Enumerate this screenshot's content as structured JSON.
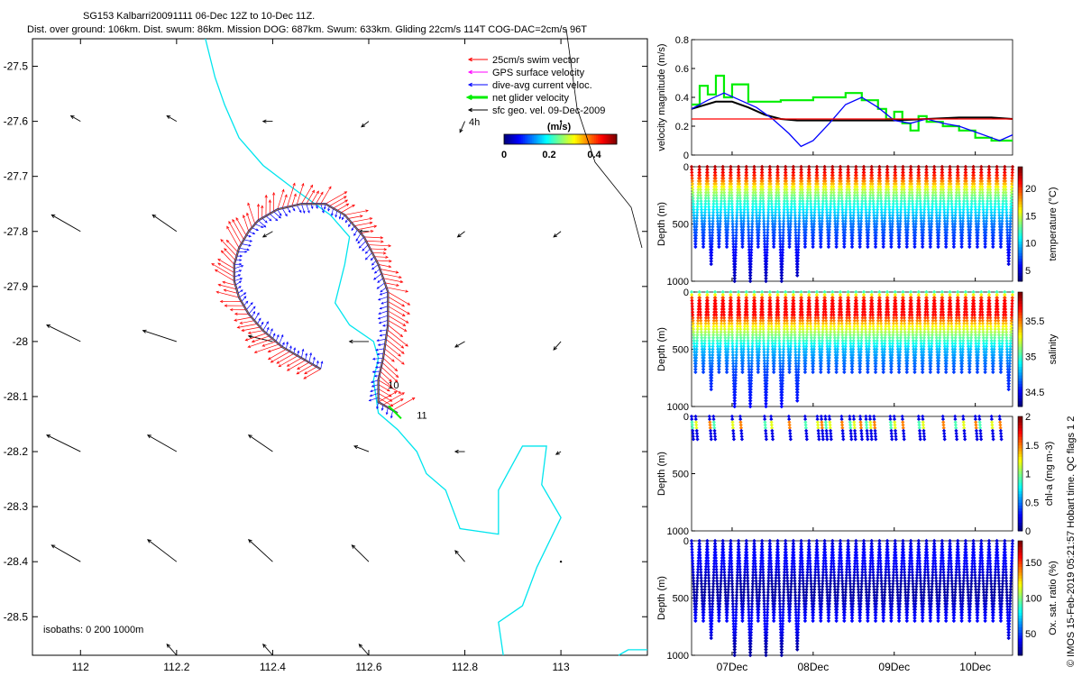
{
  "header": {
    "title": "SG153 Kalbarri20091111 06-Dec 12Z to 10-Dec 11Z.",
    "stats": "Dist. over ground: 106km. Dist. swum: 86km. Mission DOG: 687km. Swum: 633km. Gliding 22cm/s 114T COG-DAC=2cm/s 96T"
  },
  "watermark": "© IMOS 15-Feb-2019 05:21:57 Hobart time. QC flags 1  2",
  "colors": {
    "swim": "#ff0000",
    "gps": "#ff00ff",
    "dac": "#0000ff",
    "net": "#00ee00",
    "geo": "#000000",
    "isobath": "#00e5ee"
  },
  "chart_data": [
    {
      "type": "scatter",
      "name": "track-map",
      "xlim": [
        111.9,
        113.18
      ],
      "ylim": [
        -28.57,
        -27.45
      ],
      "xticks": [
        112,
        112.2,
        112.4,
        112.6,
        112.8,
        113
      ],
      "xtick_labels": [
        "112",
        "112.2",
        "112.4",
        "112.6",
        "112.8",
        "113"
      ],
      "yticks": [
        -27.5,
        -27.6,
        -27.7,
        -27.8,
        -27.9,
        -28.0,
        -28.1,
        -28.2,
        -28.3,
        -28.4,
        -28.5
      ],
      "ytick_labels": [
        "-27.5",
        "-27.6",
        "-27.7",
        "-27.8",
        "-27.9",
        "-28",
        "-28.1",
        "-28.2",
        "-28.3",
        "-28.4",
        "-28.5"
      ],
      "legend": {
        "placement": "top-right",
        "items": [
          {
            "label": "25cm/s swim vector",
            "color": "#ff0000"
          },
          {
            "label": "GPS surface velocity",
            "color": "#ff00ff"
          },
          {
            "label": "dive-avg current veloc.",
            "color": "#0000ff"
          },
          {
            "label": "net glider velocity",
            "color": "#00ee00"
          },
          {
            "label": "sfc geo. vel. 09-Dec-2009",
            "color": "#000000"
          }
        ]
      },
      "scale_label": "4h",
      "colorbar": {
        "label": "(m/s)",
        "ticks": [
          "0",
          "0.2",
          "0.4"
        ],
        "range": [
          0,
          0.5
        ]
      },
      "isobath_label": "isobaths: 0   200  1000m",
      "day_labels": [
        {
          "text": "10",
          "lon": 112.64,
          "lat": -28.085
        },
        {
          "text": "11",
          "lon": 112.7,
          "lat": -28.14
        }
      ],
      "track": [
        [
          112.5,
          -28.05
        ],
        [
          112.46,
          -28.03
        ],
        [
          112.42,
          -28.01
        ],
        [
          112.38,
          -27.98
        ],
        [
          112.35,
          -27.95
        ],
        [
          112.33,
          -27.92
        ],
        [
          112.32,
          -27.89
        ],
        [
          112.32,
          -27.86
        ],
        [
          112.33,
          -27.83
        ],
        [
          112.35,
          -27.8
        ],
        [
          112.37,
          -27.78
        ],
        [
          112.41,
          -27.76
        ],
        [
          112.46,
          -27.75
        ],
        [
          112.51,
          -27.75
        ],
        [
          112.55,
          -27.77
        ],
        [
          112.59,
          -27.81
        ],
        [
          112.62,
          -27.86
        ],
        [
          112.64,
          -27.91
        ],
        [
          112.64,
          -27.97
        ],
        [
          112.63,
          -28.03
        ],
        [
          112.62,
          -28.07
        ],
        [
          112.62,
          -28.11
        ],
        [
          112.64,
          -28.12
        ],
        [
          112.66,
          -28.13
        ]
      ],
      "isobath_0": [
        [
          112.26,
          -27.45
        ],
        [
          112.28,
          -27.52
        ],
        [
          112.3,
          -27.57
        ],
        [
          112.33,
          -27.63
        ],
        [
          112.38,
          -27.68
        ],
        [
          112.44,
          -27.72
        ],
        [
          112.52,
          -27.77
        ],
        [
          112.56,
          -27.81
        ],
        [
          112.55,
          -27.86
        ],
        [
          112.53,
          -27.93
        ],
        [
          112.56,
          -27.97
        ],
        [
          112.61,
          -28.0
        ],
        [
          112.62,
          -28.03
        ],
        [
          112.61,
          -28.07
        ],
        [
          112.62,
          -28.13
        ],
        [
          112.66,
          -28.16
        ],
        [
          112.7,
          -28.2
        ],
        [
          112.72,
          -28.24
        ],
        [
          112.76,
          -28.27
        ],
        [
          112.79,
          -28.34
        ],
        [
          112.87,
          -28.35
        ],
        [
          112.87,
          -28.27
        ],
        [
          112.92,
          -28.19
        ],
        [
          112.97,
          -28.19
        ],
        [
          112.96,
          -28.26
        ],
        [
          113.0,
          -28.32
        ],
        [
          112.95,
          -28.41
        ],
        [
          112.92,
          -28.48
        ],
        [
          112.87,
          -28.51
        ],
        [
          112.88,
          -28.57
        ]
      ],
      "isobath_1": [
        [
          113.18,
          -28.56
        ],
        [
          113.14,
          -28.56
        ],
        [
          113.12,
          -28.57
        ]
      ],
      "geo_vectors": [
        [
          112.0,
          -27.6,
          -0.02,
          0.01
        ],
        [
          112.2,
          -27.6,
          -0.02,
          0.01
        ],
        [
          112.4,
          -27.6,
          -0.02,
          0.0
        ],
        [
          112.6,
          -27.6,
          -0.015,
          -0.01
        ],
        [
          112.8,
          -27.6,
          -0.01,
          -0.02
        ],
        [
          113.0,
          -27.6,
          0.0,
          0.0
        ],
        [
          112.0,
          -27.8,
          -0.06,
          0.03
        ],
        [
          112.2,
          -27.8,
          -0.05,
          0.03
        ],
        [
          112.4,
          -27.8,
          -0.02,
          -0.01
        ],
        [
          112.6,
          -27.8,
          -0.02,
          0.0
        ],
        [
          112.8,
          -27.8,
          -0.015,
          -0.01
        ],
        [
          113.0,
          -27.8,
          -0.015,
          -0.01
        ],
        [
          112.0,
          -28.0,
          -0.07,
          0.03
        ],
        [
          112.2,
          -28.0,
          -0.07,
          0.02
        ],
        [
          112.4,
          -28.0,
          -0.05,
          0.01
        ],
        [
          112.6,
          -28.0,
          -0.04,
          0.0
        ],
        [
          112.8,
          -28.0,
          -0.02,
          -0.01
        ],
        [
          113.0,
          -28.0,
          -0.015,
          -0.015
        ],
        [
          112.0,
          -28.2,
          -0.07,
          0.03
        ],
        [
          112.2,
          -28.2,
          -0.06,
          0.03
        ],
        [
          112.4,
          -28.2,
          -0.05,
          0.03
        ],
        [
          112.6,
          -28.2,
          -0.03,
          0.01
        ],
        [
          112.8,
          -28.2,
          -0.02,
          0.0
        ],
        [
          113.0,
          -28.2,
          -0.01,
          -0.005
        ],
        [
          112.0,
          -28.4,
          -0.06,
          0.03
        ],
        [
          112.2,
          -28.4,
          -0.06,
          0.04
        ],
        [
          112.4,
          -28.4,
          -0.05,
          0.04
        ],
        [
          112.6,
          -28.4,
          -0.035,
          0.03
        ],
        [
          112.8,
          -28.4,
          -0.02,
          0.02
        ],
        [
          113.0,
          -28.4,
          0.0,
          0.0
        ],
        [
          112.2,
          -28.57,
          -0.02,
          0.02
        ],
        [
          112.4,
          -28.57,
          -0.02,
          0.02
        ],
        [
          112.6,
          -28.57,
          -0.02,
          0.02
        ]
      ]
    },
    {
      "type": "line",
      "name": "velocity-magnitude",
      "ylabel": "velocity magnitude (m/s)",
      "ylim": [
        0,
        0.8
      ],
      "yticks": [
        0,
        0.2,
        0.4,
        0.6,
        0.8
      ],
      "ytick_labels": [
        "0",
        "0.2",
        "0.4",
        "0.6",
        "0.8"
      ],
      "xlim": [
        6.5,
        10.46
      ],
      "series": [
        {
          "color": "#00ee00",
          "x": [
            6.5,
            6.6,
            6.6,
            6.7,
            6.7,
            6.8,
            6.8,
            6.9,
            6.9,
            7.0,
            7.0,
            7.2,
            7.2,
            7.6,
            7.6,
            8.0,
            8.0,
            8.4,
            8.4,
            8.6,
            8.6,
            8.8,
            8.8,
            8.9,
            8.9,
            9.0,
            9.0,
            9.1,
            9.1,
            9.2,
            9.2,
            9.3,
            9.3,
            9.4,
            9.4,
            9.6,
            9.6,
            9.8,
            9.8,
            10.0,
            10.0,
            10.2,
            10.2,
            10.46
          ],
          "y": [
            0.35,
            0.35,
            0.48,
            0.48,
            0.42,
            0.42,
            0.55,
            0.55,
            0.4,
            0.4,
            0.49,
            0.49,
            0.37,
            0.37,
            0.38,
            0.38,
            0.4,
            0.4,
            0.43,
            0.43,
            0.38,
            0.38,
            0.32,
            0.32,
            0.25,
            0.25,
            0.3,
            0.3,
            0.22,
            0.22,
            0.17,
            0.17,
            0.27,
            0.27,
            0.23,
            0.23,
            0.2,
            0.2,
            0.17,
            0.17,
            0.12,
            0.12,
            0.1,
            0.1
          ]
        },
        {
          "color": "#000000",
          "x": [
            6.5,
            6.8,
            7.0,
            7.2,
            7.4,
            7.6,
            7.8,
            8.0,
            8.4,
            8.8,
            9.0,
            9.4,
            9.8,
            10.2,
            10.46
          ],
          "y": [
            0.32,
            0.37,
            0.37,
            0.33,
            0.28,
            0.25,
            0.24,
            0.24,
            0.24,
            0.24,
            0.24,
            0.25,
            0.26,
            0.26,
            0.25
          ]
        },
        {
          "color": "#0000ff",
          "x": [
            6.5,
            6.7,
            6.9,
            7.1,
            7.3,
            7.5,
            7.7,
            7.85,
            8.0,
            8.2,
            8.4,
            8.6,
            8.8,
            9.0,
            9.2,
            9.4,
            9.6,
            9.8,
            10.0,
            10.2,
            10.3,
            10.46
          ],
          "y": [
            0.32,
            0.38,
            0.43,
            0.38,
            0.33,
            0.25,
            0.15,
            0.06,
            0.1,
            0.22,
            0.35,
            0.4,
            0.33,
            0.24,
            0.22,
            0.25,
            0.22,
            0.2,
            0.16,
            0.12,
            0.1,
            0.14
          ]
        },
        {
          "color": "#ff0000",
          "x": [
            6.5,
            10.46
          ],
          "y": [
            0.25,
            0.25
          ]
        }
      ]
    },
    {
      "type": "scatter",
      "name": "temperature-section",
      "ylabel": "Depth (m)",
      "ylim": [
        1000,
        0
      ],
      "yticks": [
        0,
        500,
        1000
      ],
      "ytick_labels": [
        "0",
        "500",
        "1000"
      ],
      "colorbar": {
        "label": "temperature (°C)",
        "ticks": [
          "5",
          "10",
          "15",
          "20"
        ],
        "range": [
          3,
          24
        ]
      },
      "profile_depths": [
        700,
        700,
        850,
        700,
        700,
        1000,
        700,
        1000,
        700,
        1000,
        700,
        1000,
        700,
        950,
        700,
        700,
        700,
        700,
        700,
        700,
        700,
        700,
        700,
        700,
        700,
        700,
        700,
        700,
        700,
        700,
        700,
        700,
        700,
        700,
        700,
        700,
        700,
        700,
        700,
        700,
        850
      ],
      "temp_profile": [
        [
          0,
          23
        ],
        [
          100,
          20
        ],
        [
          200,
          15
        ],
        [
          300,
          12
        ],
        [
          500,
          8
        ],
        [
          700,
          6
        ],
        [
          1000,
          4
        ]
      ]
    },
    {
      "type": "scatter",
      "name": "salinity-section",
      "ylabel": "Depth (m)",
      "ylim": [
        1000,
        0
      ],
      "yticks": [
        0,
        500,
        1000
      ],
      "ytick_labels": [
        "0",
        "500",
        "1000"
      ],
      "colorbar": {
        "label": "salinity",
        "ticks": [
          "34.5",
          "35",
          "35.5"
        ],
        "range": [
          34.3,
          35.9
        ]
      },
      "profile_depths": [
        700,
        700,
        850,
        700,
        700,
        1000,
        700,
        1000,
        700,
        1000,
        700,
        1000,
        700,
        950,
        700,
        700,
        700,
        700,
        700,
        700,
        700,
        700,
        700,
        700,
        700,
        700,
        700,
        700,
        700,
        700,
        700,
        700,
        700,
        700,
        700,
        700,
        700,
        700,
        700,
        700,
        850
      ],
      "sal_profile": [
        [
          0,
          35.0
        ],
        [
          60,
          35.7
        ],
        [
          200,
          35.7
        ],
        [
          300,
          35.3
        ],
        [
          500,
          34.8
        ],
        [
          700,
          34.6
        ],
        [
          1000,
          34.5
        ]
      ]
    },
    {
      "type": "scatter",
      "name": "chla-section",
      "ylabel": "Depth (m)",
      "ylim": [
        1000,
        0
      ],
      "yticks": [
        0,
        500,
        1000
      ],
      "ytick_labels": [
        "0",
        "500",
        "1000"
      ],
      "colorbar": {
        "label": "chl-a (mg m-3)",
        "ticks": [
          "0",
          "0.5",
          "1",
          "1.5",
          "2"
        ],
        "range": [
          0,
          2
        ]
      },
      "profiles": [
        6.5,
        6.55,
        6.72,
        6.77,
        7.0,
        7.1,
        7.4,
        7.48,
        7.7,
        7.9,
        8.05,
        8.1,
        8.15,
        8.2,
        8.35,
        8.45,
        8.5,
        8.58,
        8.65,
        8.7,
        8.75,
        8.95,
        9.0,
        9.1,
        9.3,
        9.35,
        9.6,
        9.75,
        9.85,
        10.0,
        10.05,
        10.2,
        10.3
      ]
    },
    {
      "type": "scatter",
      "name": "oxygen-section",
      "ylabel": "Depth (m)",
      "ylim": [
        1000,
        0
      ],
      "yticks": [
        0,
        500,
        1000
      ],
      "ytick_labels": [
        "0",
        "500",
        "1000"
      ],
      "colorbar": {
        "label": "Ox. sat. ratio (%)",
        "ticks": [
          "50",
          "100",
          "150"
        ],
        "range": [
          20,
          180
        ]
      },
      "profile_depths": [
        700,
        700,
        850,
        700,
        700,
        1000,
        700,
        1000,
        700,
        1000,
        700,
        1000,
        700,
        950,
        700,
        700,
        700,
        700,
        700,
        700,
        700,
        700,
        700,
        700,
        700,
        700,
        700,
        700,
        700,
        700,
        700,
        700,
        700,
        700,
        700,
        700,
        700,
        700,
        700,
        700,
        850
      ],
      "xlim": [
        6.5,
        10.46
      ],
      "xticks": [
        7,
        8,
        9,
        10
      ],
      "xtick_labels": [
        "07Dec",
        "08Dec",
        "09Dec",
        "10Dec"
      ]
    }
  ]
}
